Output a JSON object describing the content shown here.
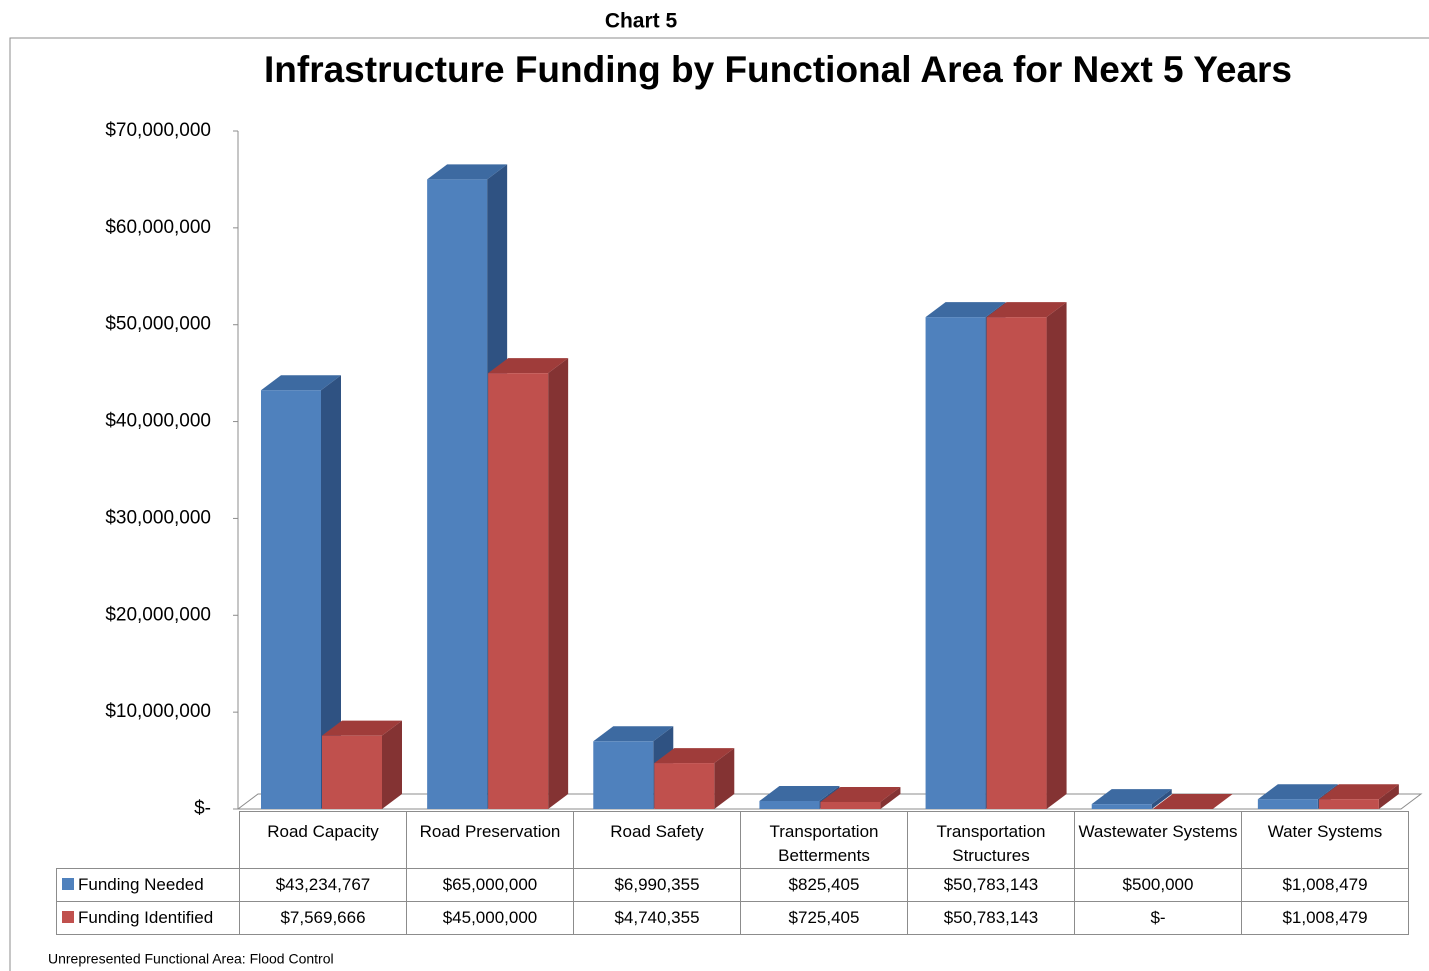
{
  "header": "Chart 5",
  "chart_data": {
    "type": "bar3d",
    "title": "Infrastructure Funding by Functional Area for Next 5 Years",
    "categories": [
      "Road Capacity",
      "Road Preservation",
      "Road Safety",
      "Transportation Betterments",
      "Transportation Structures",
      "Wastewater Systems",
      "Water Systems"
    ],
    "series": [
      {
        "name": "Funding Needed",
        "color": "#4f81bd",
        "side": "#2f5282",
        "top": "#3d6aa1",
        "values": [
          43234767,
          65000000,
          6990355,
          825405,
          50783143,
          500000,
          1008479
        ],
        "value_labels": [
          "$43,234,767",
          "$65,000,000",
          "$6,990,355",
          "$825,405",
          "$50,783,143",
          "$500,000",
          "$1,008,479"
        ]
      },
      {
        "name": "Funding Identified",
        "color": "#c0504d",
        "side": "#843333",
        "top": "#9f3c3a",
        "values": [
          7569666,
          45000000,
          4740355,
          725405,
          50783143,
          0,
          1008479
        ],
        "value_labels": [
          "$7,569,666",
          "$45,000,000",
          "$4,740,355",
          "$725,405",
          "$50,783,143",
          "$-",
          "$1,008,479"
        ]
      }
    ],
    "ylim": [
      0,
      70000000
    ],
    "yticks": [
      {
        "value": 0,
        "label": "$-"
      },
      {
        "value": 10000000,
        "label": "$10,000,000"
      },
      {
        "value": 20000000,
        "label": "$20,000,000"
      },
      {
        "value": 30000000,
        "label": "$30,000,000"
      },
      {
        "value": 40000000,
        "label": "$40,000,000"
      },
      {
        "value": 50000000,
        "label": "$50,000,000"
      },
      {
        "value": 60000000,
        "label": "$60,000,000"
      },
      {
        "value": 70000000,
        "label": "$70,000,000"
      }
    ],
    "grid": false
  },
  "footnote": "Unrepresented Functional Area: Flood Control"
}
